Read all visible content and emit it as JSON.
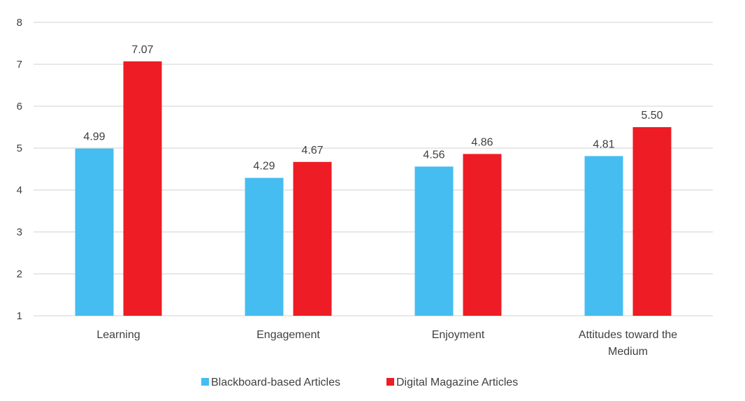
{
  "chart_data": {
    "type": "bar",
    "categories": [
      "Learning",
      "Engagement",
      "Enjoyment",
      "Attitudes toward the Medium"
    ],
    "category_lines": [
      [
        "Learning"
      ],
      [
        "Engagement"
      ],
      [
        "Enjoyment"
      ],
      [
        "Attitudes toward the",
        "Medium"
      ]
    ],
    "series": [
      {
        "name": "Blackboard-based Articles",
        "color": "#45bdf0",
        "values": [
          4.99,
          4.29,
          4.56,
          4.81
        ],
        "labels": [
          "4.99",
          "4.29",
          "4.56",
          "4.81"
        ]
      },
      {
        "name": "Digital Magazine Articles",
        "color": "#ee1c24",
        "values": [
          7.07,
          4.67,
          4.86,
          5.5
        ],
        "labels": [
          "7.07",
          "4.67",
          "4.86",
          "5.50"
        ]
      }
    ],
    "yticks": [
      "1",
      "2",
      "3",
      "4",
      "5",
      "6",
      "7",
      "8"
    ],
    "ylim": [
      1,
      8
    ],
    "grid": true,
    "legend": "bottom",
    "title": "",
    "xlabel": "",
    "ylabel": ""
  }
}
